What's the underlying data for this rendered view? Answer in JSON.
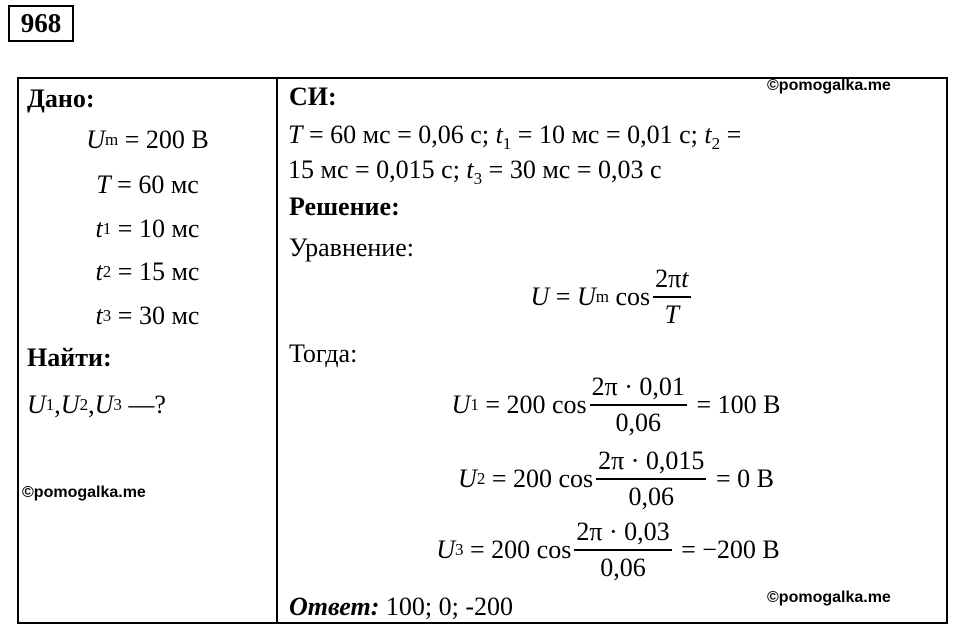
{
  "problem_number": "968",
  "given": {
    "label": "Дано:",
    "items": [
      [
        {
          "v": "U",
          "s": "m"
        },
        {
          "t": " = 200 В"
        }
      ],
      [
        {
          "v": "T"
        },
        {
          "t": " = 60 мс"
        }
      ],
      [
        {
          "v": "t",
          "s": "1"
        },
        {
          "t": " = 10 мс"
        }
      ],
      [
        {
          "v": "t",
          "s": "2"
        },
        {
          "t": " = 15 мс"
        }
      ],
      [
        {
          "v": "t",
          "s": "3"
        },
        {
          "t": " = 30 мс"
        }
      ]
    ]
  },
  "find": {
    "label": "Найти:",
    "expr": [
      {
        "v": "U",
        "s": "1"
      },
      {
        "t": ","
      },
      {
        "v": "U",
        "s": "2"
      },
      {
        "t": ","
      },
      {
        "v": "U",
        "s": "3"
      },
      {
        "t": " —?"
      }
    ]
  },
  "si": {
    "label": "СИ:",
    "lines": [
      [
        {
          "v": "T"
        },
        {
          "t": " = 60 мс = 0,06 с; "
        },
        {
          "v": "t",
          "s": "1"
        },
        {
          "t": " = 10 мс = 0,01 с; "
        },
        {
          "v": "t",
          "s": "2"
        },
        {
          "t": " ="
        }
      ],
      [
        {
          "t": "15 мс = 0,015 с; "
        },
        {
          "v": "t",
          "s": "3"
        },
        {
          "t": " = 30 мс = 0,03 с"
        }
      ]
    ]
  },
  "solution": {
    "label": "Решение:",
    "equation_label": "Уравнение:",
    "equation": [
      {
        "v": "U"
      },
      {
        "t": " = "
      },
      {
        "v": "U",
        "s": "m"
      },
      {
        "t": " cos"
      },
      {
        "num": [
          {
            "t": "2π"
          },
          {
            "v": "t"
          }
        ],
        "den": [
          {
            "v": "T"
          }
        ]
      }
    ],
    "then_label": "Тогда:",
    "results": [
      [
        {
          "v": "U",
          "s": "1"
        },
        {
          "t": " = 200 cos"
        },
        {
          "num": [
            {
              "t": "2π · 0,01"
            }
          ],
          "den": [
            {
              "t": "0,06"
            }
          ]
        },
        {
          "t": " = 100 В"
        }
      ],
      [
        {
          "v": "U",
          "s": "2"
        },
        {
          "t": " = 200 cos"
        },
        {
          "num": [
            {
              "t": "2π · 0,015"
            }
          ],
          "den": [
            {
              "t": "0,06"
            }
          ]
        },
        {
          "t": " = 0 В"
        }
      ],
      [
        {
          "v": "U",
          "s": "3"
        },
        {
          "t": " = 200 cos"
        },
        {
          "num": [
            {
              "t": "2π · 0,03"
            }
          ],
          "den": [
            {
              "t": "0,06"
            }
          ]
        },
        {
          "t": " = −200 В"
        }
      ]
    ]
  },
  "answer": {
    "label": "Ответ:",
    "text": " 100; 0; -200"
  },
  "watermarks": [
    "©pomogalka.me",
    "©pomogalka.me",
    "©pomogalka.me"
  ]
}
